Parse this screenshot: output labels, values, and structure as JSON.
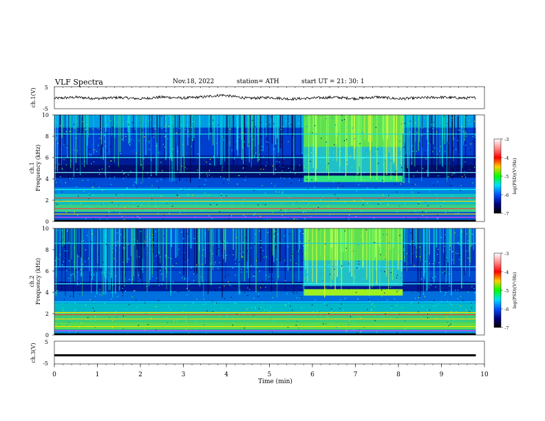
{
  "header": {
    "title": "VLF  Spectra",
    "date": "Nov.18, 2022",
    "station": "station= ATH",
    "start": "start  UT  =    21: 30: 1"
  },
  "colorbar": {
    "label": "log(PSD)(V²/Hz)",
    "ticks": [
      "-3",
      "-4",
      "-5",
      "-6",
      "-7"
    ],
    "colors": [
      "#ffffff",
      "#ff8c8c",
      "#ff0000",
      "#ffd000",
      "#00ff00",
      "#00e0ff",
      "#0050ff",
      "#000080",
      "#000000"
    ]
  },
  "chart_data": [
    {
      "type": "line",
      "name": "ch1-waveform",
      "ylabel": "ch.1(V)",
      "ylim": [
        -5,
        5
      ],
      "yticks": [
        "5",
        "-5"
      ],
      "xlim": [
        0,
        10
      ],
      "description_of_signal": "noisy trace around about 0 V with small fluctuations",
      "x": [
        0,
        0.5,
        1,
        1.5,
        2,
        2.5,
        3,
        3.5,
        3.9,
        4.5,
        5,
        5.5,
        6,
        6.5,
        7,
        7.5,
        8,
        8.5,
        9,
        9.5,
        9.8
      ],
      "y": [
        -0.3,
        0.2,
        -0.4,
        0.1,
        -0.5,
        0.3,
        -0.2,
        0.4,
        1.2,
        -0.3,
        0.1,
        -0.6,
        -0.2,
        0.2,
        -0.4,
        0.3,
        -0.5,
        -0.1,
        0.2,
        -0.2,
        0.0
      ]
    },
    {
      "type": "heatmap",
      "name": "ch1-spectrogram",
      "ylabel": "ch.1\nFrequency  (kHz)",
      "ylim": [
        0,
        10
      ],
      "yticks": [
        "0",
        "2",
        "4",
        "6",
        "8",
        "10"
      ],
      "xlim": [
        0,
        10
      ],
      "data_end_min": 9.8,
      "enhanced_interval_min": [
        5.8,
        8.1
      ],
      "band_khz": [
        3.7,
        4.3
      ]
    },
    {
      "type": "heatmap",
      "name": "ch2-spectrogram",
      "ylabel": "ch.2\nFrequency  (kHz)",
      "ylim": [
        0,
        10
      ],
      "yticks": [
        "0",
        "2",
        "4",
        "6",
        "8",
        "10"
      ],
      "xlim": [
        0,
        10
      ],
      "data_end_min": 9.8,
      "enhanced_interval_min": [
        5.8,
        8.1
      ],
      "band_khz": [
        3.7,
        4.3
      ]
    },
    {
      "type": "line",
      "name": "ch3-waveform",
      "ylabel": "ch.3(V)",
      "ylim": [
        -5,
        5
      ],
      "yticks": [
        "5",
        "-5"
      ],
      "xlim": [
        0,
        10
      ],
      "x": [
        0,
        9.8
      ],
      "y": [
        -1.2,
        -1.2
      ]
    }
  ],
  "xaxis": {
    "label": "Time  (min)",
    "ticks": [
      "0",
      "1",
      "2",
      "3",
      "4",
      "5",
      "6",
      "7",
      "8",
      "9",
      "10"
    ]
  }
}
